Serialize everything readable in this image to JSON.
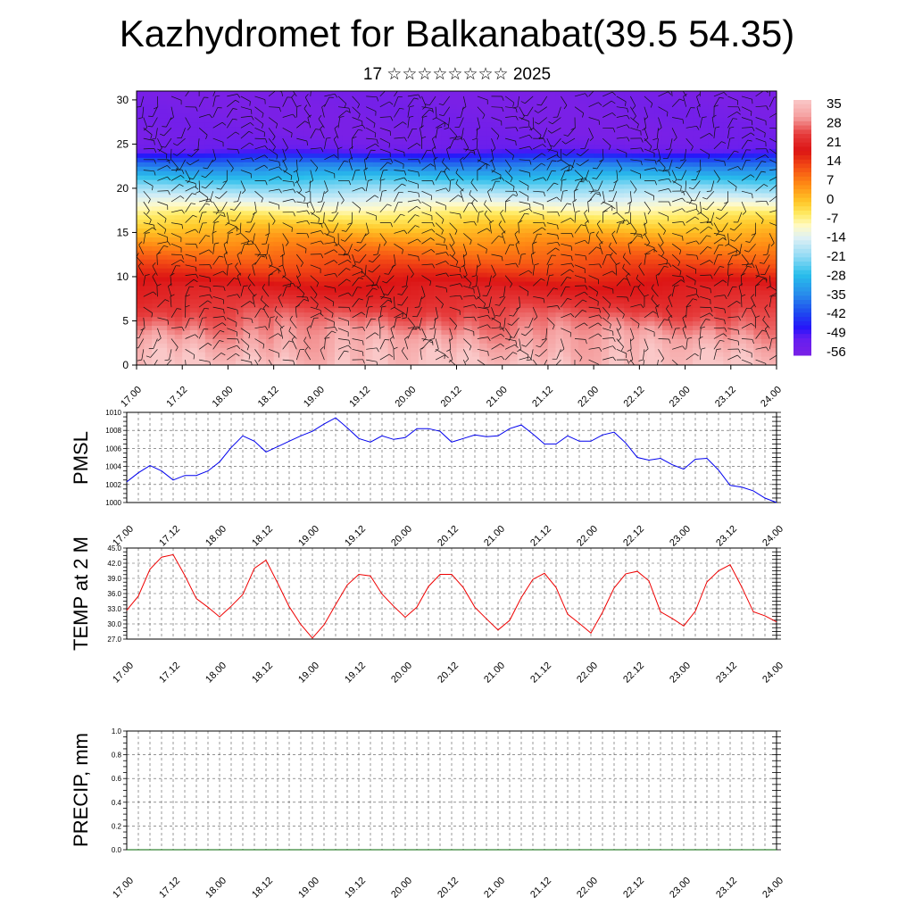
{
  "title": "Kazhydromet for Balkanabat(39.5 54.35)",
  "subtitle": "17 ☆☆☆☆☆☆☆☆ 2025",
  "x_tick_labels": [
    "17.00",
    "17.12",
    "18.00",
    "18.12",
    "19.00",
    "19.12",
    "20.00",
    "20.12",
    "21.00",
    "21.12",
    "22.00",
    "22.12",
    "23.00",
    "23.12",
    "24.00"
  ],
  "colors": {
    "pmsl_line": "#0000ee",
    "temp_line": "#ee0000",
    "precip_line": "#006400",
    "frame": "#000000"
  },
  "chart_data": [
    {
      "type": "heatmap",
      "name_hint": "temperature cross-section with wind barbs",
      "x_range_hours": [
        0,
        168
      ],
      "ylim": [
        0,
        31
      ],
      "y_ticks": [
        0,
        5,
        10,
        15,
        20,
        25,
        30
      ],
      "colorbar_labels": [
        "35",
        "28",
        "21",
        "14",
        "7",
        "0",
        "-7",
        "-14",
        "-21",
        "-28",
        "-35",
        "-42",
        "-49",
        "-56"
      ],
      "colorbar_range": [
        -63,
        42
      ],
      "level_temperature_profile": [
        {
          "level": 0,
          "value": 38
        },
        {
          "level": 3,
          "value": 34
        },
        {
          "level": 6,
          "value": 28
        },
        {
          "level": 9,
          "value": 22
        },
        {
          "level": 11,
          "value": 16
        },
        {
          "level": 13,
          "value": 10
        },
        {
          "level": 15,
          "value": 3
        },
        {
          "level": 17,
          "value": -5
        },
        {
          "level": 19,
          "value": -16
        },
        {
          "level": 21,
          "value": -28
        },
        {
          "level": 23,
          "value": -42
        },
        {
          "level": 24.5,
          "value": -58
        },
        {
          "level": 26,
          "value": -62
        },
        {
          "level": 31,
          "value": -63
        }
      ],
      "diurnal_hot_columns_hours": [
        6,
        15,
        30,
        39,
        54,
        63,
        78,
        87,
        102,
        111,
        126,
        135,
        150,
        159
      ]
    },
    {
      "type": "line",
      "ylabel": "PMSL",
      "ylim": [
        1000,
        1010
      ],
      "y_ticks": [
        "1000",
        "1002",
        "1004",
        "1006",
        "1008",
        "1010"
      ],
      "x_step_hours": 3,
      "values": [
        1002.3,
        1003.3,
        1004.1,
        1003.5,
        1002.5,
        1003.0,
        1003.0,
        1003.5,
        1004.5,
        1006.1,
        1007.4,
        1006.8,
        1005.6,
        1006.2,
        1006.8,
        1007.4,
        1007.9,
        1008.7,
        1009.4,
        1008.3,
        1007.1,
        1006.7,
        1007.4,
        1007.0,
        1007.2,
        1008.2,
        1008.2,
        1007.9,
        1006.7,
        1007.1,
        1007.5,
        1007.3,
        1007.4,
        1008.2,
        1008.6,
        1007.6,
        1006.5,
        1006.5,
        1007.4,
        1006.8,
        1006.8,
        1007.5,
        1007.8,
        1006.6,
        1005.0,
        1004.7,
        1004.9,
        1004.2,
        1003.7,
        1004.8,
        1004.9,
        1003.6,
        1001.9,
        1001.7,
        1001.3,
        1000.5,
        1000.0
      ]
    },
    {
      "type": "line",
      "ylabel": "TEMP at 2 M",
      "ylim": [
        27,
        45
      ],
      "y_ticks": [
        "27.0",
        "30.0",
        "33.0",
        "36.0",
        "39.0",
        "42.0",
        "45.0"
      ],
      "x_step_hours": 3,
      "values": [
        32.7,
        35.5,
        40.8,
        43.2,
        43.7,
        39.6,
        35.0,
        33.3,
        31.4,
        33.5,
        35.8,
        41.0,
        42.6,
        38.1,
        33.4,
        29.9,
        27.2,
        29.8,
        33.8,
        37.7,
        39.8,
        39.5,
        35.9,
        33.5,
        31.3,
        33.3,
        37.4,
        39.8,
        39.8,
        37.2,
        33.3,
        31.0,
        28.8,
        30.7,
        35.2,
        38.8,
        40.0,
        37.2,
        31.9,
        30.1,
        28.2,
        32.3,
        37.1,
        39.9,
        40.4,
        38.5,
        32.4,
        31.1,
        29.6,
        32.5,
        38.3,
        40.5,
        41.7,
        37.3,
        32.4,
        31.6,
        30.4
      ]
    },
    {
      "type": "line",
      "ylabel": "PRECIP, mm",
      "ylim": [
        0.0,
        1.0
      ],
      "y_ticks": [
        "0.0",
        "0.2",
        "0.4",
        "0.6",
        "0.8",
        "1.0"
      ],
      "x_step_hours": 3,
      "values": [
        0,
        0,
        0,
        0,
        0,
        0,
        0,
        0,
        0,
        0,
        0,
        0,
        0,
        0,
        0,
        0,
        0,
        0,
        0,
        0,
        0,
        0,
        0,
        0,
        0,
        0,
        0,
        0,
        0,
        0,
        0,
        0,
        0,
        0,
        0,
        0,
        0,
        0,
        0,
        0,
        0,
        0,
        0,
        0,
        0,
        0,
        0,
        0,
        0,
        0,
        0,
        0,
        0,
        0,
        0,
        0,
        0
      ]
    }
  ]
}
